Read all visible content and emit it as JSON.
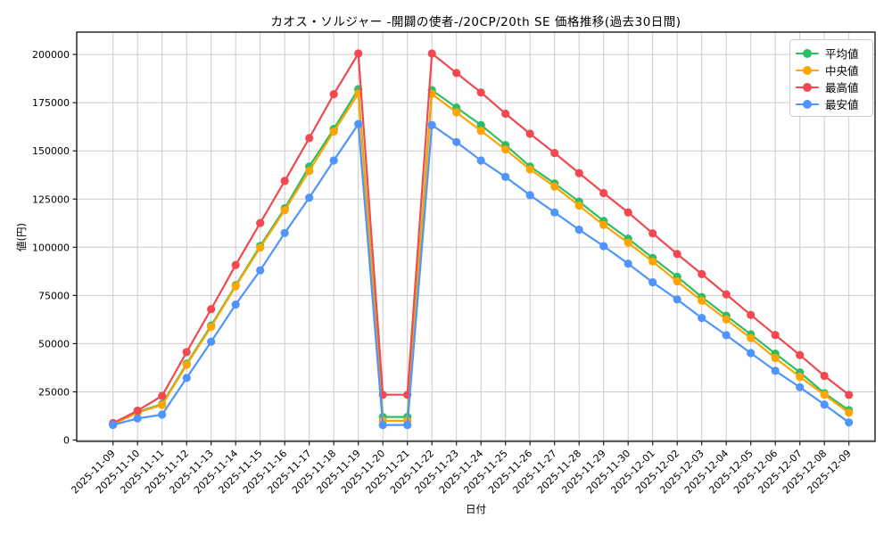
{
  "chart_data": {
    "type": "line",
    "title": "カオス・ソルジャー -開闢の使者-/20CP/20th SE 価格推移(過去30日間)",
    "xlabel": "日付",
    "ylabel": "値(円)",
    "x": [
      "2025-11-09",
      "2025-11-10",
      "2025-11-11",
      "2025-11-12",
      "2025-11-13",
      "2025-11-14",
      "2025-11-15",
      "2025-11-16",
      "2025-11-17",
      "2025-11-18",
      "2025-11-19",
      "2025-11-20",
      "2025-11-21",
      "2025-11-22",
      "2025-11-23",
      "2025-11-24",
      "2025-11-25",
      "2025-11-26",
      "2025-11-27",
      "2025-11-28",
      "2025-11-29",
      "2025-11-30",
      "2025-12-01",
      "2025-12-02",
      "2025-12-03",
      "2025-12-04",
      "2025-12-05",
      "2025-12-06",
      "2025-12-07",
      "2025-12-08",
      "2025-12-09"
    ],
    "series": [
      {
        "key": "mean",
        "name": "平均値",
        "color": "#2dbe64",
        "values": [
          8200,
          14500,
          18700,
          39600,
          59400,
          80300,
          100700,
          120200,
          141900,
          161400,
          182000,
          12000,
          12000,
          181500,
          172500,
          163400,
          153000,
          141900,
          133100,
          123700,
          113700,
          104500,
          94500,
          84700,
          74200,
          64500,
          54800,
          44800,
          35100,
          24300,
          15500
        ]
      },
      {
        "key": "median",
        "name": "中央値",
        "color": "#ffa502",
        "values": [
          8000,
          14300,
          18200,
          39000,
          58700,
          79800,
          99800,
          119200,
          139600,
          160000,
          179700,
          10000,
          10000,
          179500,
          170000,
          160400,
          150700,
          140400,
          131500,
          121600,
          111600,
          102300,
          92600,
          82300,
          72300,
          62600,
          52900,
          42500,
          32800,
          23500,
          14200
        ]
      },
      {
        "key": "max",
        "name": "最高値",
        "color": "#f2484f",
        "values": [
          8800,
          15200,
          22900,
          45600,
          67900,
          90800,
          112600,
          134400,
          156600,
          179400,
          200500,
          23500,
          23500,
          200500,
          190400,
          180300,
          169300,
          158900,
          148900,
          138500,
          128100,
          118100,
          107200,
          96500,
          86100,
          75600,
          64900,
          54500,
          44100,
          33300,
          23400
        ]
      },
      {
        "key": "min",
        "name": "最安値",
        "color": "#4f94ff",
        "values": [
          7800,
          11200,
          13200,
          32200,
          51000,
          70300,
          88000,
          107400,
          125700,
          145000,
          163900,
          7800,
          7800,
          163400,
          154600,
          145000,
          136500,
          127000,
          118100,
          109100,
          100600,
          91500,
          81800,
          72900,
          63300,
          54400,
          45100,
          35900,
          27400,
          18400,
          9100
        ]
      }
    ],
    "yticks": [
      0,
      25000,
      50000,
      75000,
      100000,
      125000,
      150000,
      175000,
      200000
    ],
    "ylim": [
      0,
      212000
    ],
    "grid": true,
    "grid_color": "#cccccc",
    "legend_position": "top-right"
  }
}
